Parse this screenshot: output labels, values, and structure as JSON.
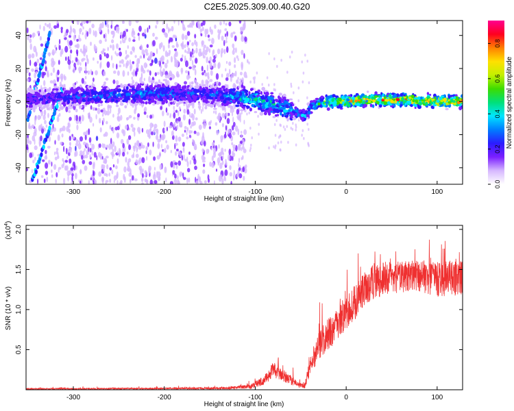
{
  "title": "C2E5.2025.309.00.40.G20",
  "chart_data": [
    {
      "type": "heatmap",
      "name": "spectrogram",
      "xlabel": "Height of straight line (km)",
      "ylabel": "Frequency (Hz)",
      "xlim": [
        -352,
        128
      ],
      "ylim": [
        -50,
        49
      ],
      "xticks": [
        -300,
        -200,
        -100,
        0,
        100
      ],
      "yticks": [
        -40,
        -20,
        0,
        20,
        40
      ],
      "colorbar": {
        "label": "Normalized spectral amplitude",
        "range": [
          0,
          0.93
        ],
        "ticks": [
          "0.0",
          "0.2",
          "0.4",
          "0.6",
          "0.8"
        ],
        "colors": [
          "#ffffff",
          "#d6b8ff",
          "#7a1fff",
          "#2b1cff",
          "#007dff",
          "#00e5ff",
          "#00e07a",
          "#3ddc00",
          "#c4f000",
          "#ffe000",
          "#ff8000",
          "#ff0020",
          "#ff0090"
        ]
      },
      "ridge_x": [
        -352,
        -300,
        -260,
        -200,
        -140,
        -125,
        -100,
        -80,
        -60,
        -45,
        -38,
        -30,
        -20,
        0,
        20,
        60,
        100,
        128
      ],
      "ridge_y": [
        1,
        3,
        4,
        5,
        4,
        3,
        1,
        -2,
        -5,
        -9,
        -3,
        -1,
        0,
        0,
        1,
        1,
        0,
        0
      ],
      "ridge_amplitude": [
        0.25,
        0.3,
        0.35,
        0.35,
        0.3,
        0.45,
        0.5,
        0.5,
        0.45,
        0.4,
        0.45,
        0.55,
        0.7,
        0.75,
        0.8,
        0.85,
        0.85,
        0.85
      ],
      "streaks": [
        {
          "x": [
            -350,
            -326
          ],
          "y": [
            -10,
            40
          ]
        },
        {
          "x": [
            -345,
            -312
          ],
          "y": [
            -48,
            8
          ]
        }
      ]
    },
    {
      "type": "line",
      "name": "snr",
      "xlabel": "Height of straight line (km)",
      "ylabel": "SNR (10 * v/v)",
      "yscale_label": "(x10",
      "yscale_exp": "4",
      "xlim": [
        -352,
        128
      ],
      "ylim": [
        0,
        2.05
      ],
      "xticks": [
        -300,
        -200,
        -100,
        0,
        100
      ],
      "yticks": [
        "0.5",
        "1.0",
        "1.5",
        "2.0"
      ],
      "color": "#ef3030",
      "envelope_x": [
        -352,
        -200,
        -130,
        -105,
        -90,
        -80,
        -70,
        -60,
        -55,
        -50,
        -45,
        -40,
        -30,
        -20,
        -10,
        0,
        10,
        20,
        30,
        50,
        80,
        100,
        128
      ],
      "envelope_y": [
        0.01,
        0.015,
        0.02,
        0.04,
        0.12,
        0.25,
        0.18,
        0.12,
        0.08,
        0.05,
        0.06,
        0.3,
        0.55,
        0.7,
        0.8,
        0.95,
        1.1,
        1.25,
        1.35,
        1.4,
        1.42,
        1.38,
        1.4
      ],
      "spread_y": [
        0.01,
        0.01,
        0.015,
        0.03,
        0.06,
        0.1,
        0.08,
        0.06,
        0.04,
        0.03,
        0.05,
        0.12,
        0.18,
        0.2,
        0.2,
        0.2,
        0.22,
        0.22,
        0.22,
        0.2,
        0.2,
        0.22,
        0.22
      ]
    }
  ]
}
